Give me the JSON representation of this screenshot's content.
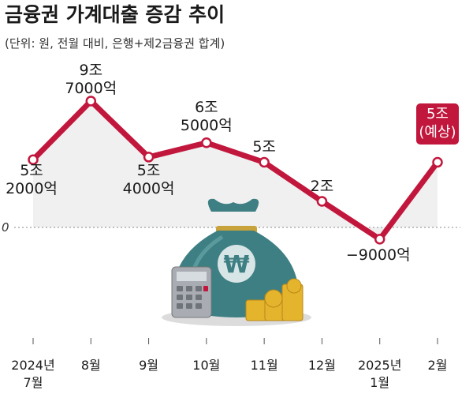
{
  "title": "금융권 가계대출 증감 추이",
  "subtitle": "(단위: 원, 전월 대비, 은행+제2금융권 합계)",
  "zero_label": "0",
  "colors": {
    "line": "#c2173d",
    "area": "#f0f0f0",
    "highlight": "#c2173d"
  },
  "chart_data": {
    "type": "line",
    "unit": "억원",
    "x": [
      "2024년 7월",
      "8월",
      "9월",
      "10월",
      "11월",
      "12월",
      "2025년 1월",
      "2월"
    ],
    "values": [
      52000,
      97000,
      54000,
      65000,
      50000,
      20000,
      -9000,
      50000
    ],
    "data_labels": [
      [
        "5조",
        "2000억"
      ],
      [
        "9조",
        "7000억"
      ],
      [
        "5조",
        "4000억"
      ],
      [
        "6조",
        "5000억"
      ],
      [
        "5조"
      ],
      [
        "2조"
      ],
      [
        "−9000억"
      ],
      [
        "5조",
        "(예상)"
      ]
    ],
    "tick_labels": [
      [
        "2024년",
        "7월"
      ],
      [
        "8월"
      ],
      [
        "9월"
      ],
      [
        "10월"
      ],
      [
        "11월"
      ],
      [
        "12월"
      ],
      [
        "2025년",
        "1월"
      ],
      [
        "2월"
      ]
    ],
    "highlight_index": 7,
    "zero_line": true
  }
}
